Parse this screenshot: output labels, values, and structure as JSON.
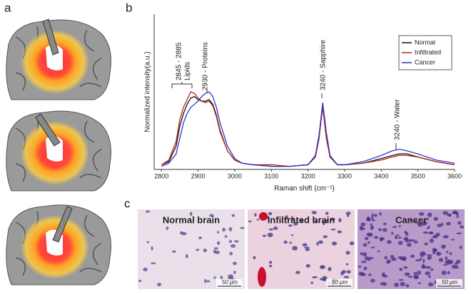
{
  "panel_labels": [
    "a",
    "b",
    "c"
  ],
  "chart_data": {
    "type": "line",
    "x_label": "Raman shift (cm⁻¹)",
    "y_label": "Normalized intensity(a.u.)",
    "x": [
      2800,
      2820,
      2840,
      2850,
      2860,
      2870,
      2880,
      2890,
      2900,
      2910,
      2920,
      2930,
      2940,
      2950,
      2960,
      2980,
      3000,
      3020,
      3050,
      3100,
      3150,
      3200,
      3220,
      3230,
      3240,
      3250,
      3260,
      3280,
      3300,
      3350,
      3400,
      3430,
      3450,
      3470,
      3500,
      3550,
      3600
    ],
    "series": [
      {
        "name": "Normal",
        "color": "#111111",
        "values": [
          0.03,
          0.05,
          0.15,
          0.28,
          0.36,
          0.42,
          0.46,
          0.47,
          0.45,
          0.44,
          0.44,
          0.45,
          0.42,
          0.35,
          0.25,
          0.12,
          0.06,
          0.04,
          0.03,
          0.02,
          0.02,
          0.03,
          0.08,
          0.2,
          0.42,
          0.22,
          0.08,
          0.03,
          0.03,
          0.04,
          0.07,
          0.09,
          0.1,
          0.1,
          0.08,
          0.05,
          0.03
        ]
      },
      {
        "name": "Infiltrated",
        "color": "#b8261b",
        "values": [
          0.03,
          0.06,
          0.18,
          0.32,
          0.4,
          0.45,
          0.5,
          0.49,
          0.46,
          0.44,
          0.43,
          0.44,
          0.41,
          0.34,
          0.24,
          0.12,
          0.06,
          0.04,
          0.03,
          0.03,
          0.02,
          0.03,
          0.08,
          0.2,
          0.4,
          0.2,
          0.08,
          0.03,
          0.03,
          0.04,
          0.06,
          0.08,
          0.09,
          0.09,
          0.08,
          0.05,
          0.03
        ]
      },
      {
        "name": "Cancer",
        "color": "#2d35c8",
        "values": [
          0.02,
          0.04,
          0.1,
          0.2,
          0.3,
          0.36,
          0.4,
          0.42,
          0.44,
          0.47,
          0.49,
          0.5,
          0.47,
          0.4,
          0.3,
          0.15,
          0.07,
          0.04,
          0.03,
          0.02,
          0.02,
          0.03,
          0.09,
          0.22,
          0.43,
          0.24,
          0.09,
          0.03,
          0.03,
          0.05,
          0.09,
          0.12,
          0.13,
          0.12,
          0.1,
          0.06,
          0.04
        ]
      }
    ],
    "xlim": [
      2780,
      3600
    ],
    "ylim": [
      0,
      1
    ],
    "xticks": [
      2800,
      2900,
      3000,
      3100,
      3200,
      3300,
      3400,
      3500,
      3600
    ],
    "legend": "upper right",
    "annotations": [
      "2845 - 2885",
      "Lipids",
      "2930 - Proteins",
      "3240 - Sapphire",
      "3240 - Water"
    ]
  },
  "histology": [
    {
      "title": "Normal brain",
      "scale": "50 μm"
    },
    {
      "title": "Infiltrated brain",
      "scale": "50 μm"
    },
    {
      "title": "Cancer",
      "scale": "50 μm"
    }
  ]
}
